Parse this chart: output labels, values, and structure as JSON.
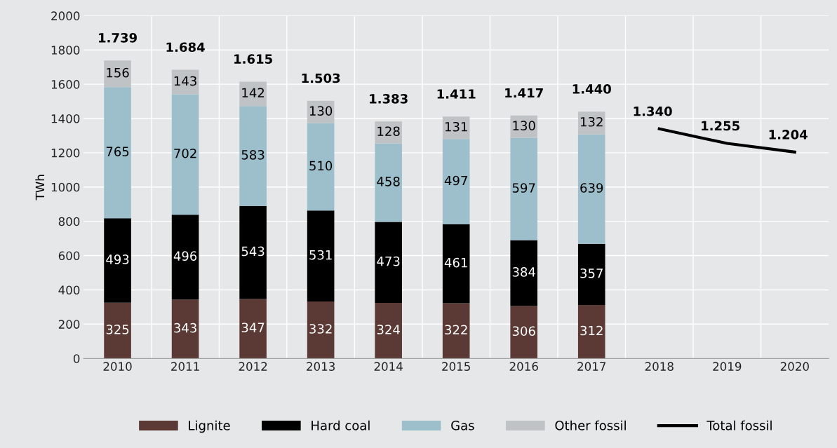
{
  "chart_data": {
    "type": "bar",
    "stacked": true,
    "ylabel": "TWh",
    "categories": [
      "2010",
      "2011",
      "2012",
      "2013",
      "2014",
      "2015",
      "2016",
      "2017",
      "2018",
      "2019",
      "2020"
    ],
    "series": [
      {
        "name": "Lignite",
        "color": "#5b3a36",
        "values": [
          325,
          343,
          347,
          332,
          324,
          322,
          306,
          312,
          null,
          null,
          null
        ]
      },
      {
        "name": "Hard coal",
        "color": "#000000",
        "values": [
          493,
          496,
          543,
          531,
          473,
          461,
          384,
          357,
          null,
          null,
          null
        ]
      },
      {
        "name": "Gas",
        "color": "#9dbfcc",
        "values": [
          765,
          702,
          583,
          510,
          458,
          497,
          597,
          639,
          null,
          null,
          null
        ]
      },
      {
        "name": "Other fossil",
        "color": "#bfc3c6",
        "values": [
          156,
          143,
          142,
          130,
          128,
          131,
          130,
          132,
          null,
          null,
          null
        ]
      },
      {
        "name": "Total fossil",
        "type": "line",
        "color": "#000000",
        "values": [
          null,
          null,
          null,
          null,
          null,
          null,
          null,
          null,
          1340,
          1255,
          1204
        ],
        "value_labels": [
          null,
          null,
          null,
          null,
          null,
          null,
          null,
          null,
          "1.340",
          "1.255",
          "1.204"
        ]
      }
    ],
    "data_labels": true,
    "totals": [
      "1.739",
      "1.684",
      "1.615",
      "1.503",
      "1.383",
      "1.411",
      "1.417",
      "1.440",
      null,
      null,
      null
    ],
    "ylim": [
      0,
      2000
    ],
    "yticks": [
      0,
      200,
      400,
      600,
      800,
      1000,
      1200,
      1400,
      1600,
      1800,
      2000
    ],
    "grid": true,
    "legend": "bottom",
    "marker": "none"
  }
}
